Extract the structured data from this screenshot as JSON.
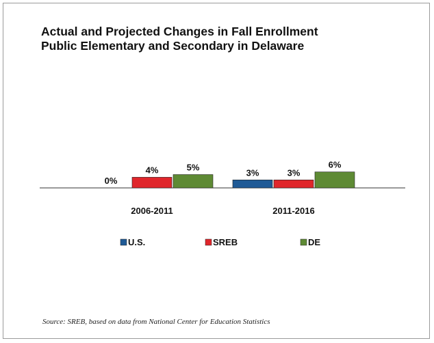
{
  "chart_data": {
    "type": "bar",
    "title_lines": [
      "Actual and Projected Changes in Fall Enrollment",
      "Public Elementary and Secondary in Delaware"
    ],
    "categories": [
      "2006-2011",
      "2011-2016"
    ],
    "series": [
      {
        "name": "U.S.",
        "color": "#1f5a96",
        "values": [
          0,
          3
        ],
        "labels": [
          "0%",
          "3%"
        ]
      },
      {
        "name": "SREB",
        "color": "#e0262b",
        "values": [
          4,
          3
        ],
        "labels": [
          "4%",
          "3%"
        ]
      },
      {
        "name": "DE",
        "color": "#5e8a34",
        "values": [
          5,
          6
        ],
        "labels": [
          "5%",
          "6%"
        ]
      }
    ],
    "ylim": [
      0,
      6
    ],
    "grid": false,
    "legend_position": "bottom"
  },
  "source_note": "Source: SREB, based on data from National Center for Education Statistics"
}
